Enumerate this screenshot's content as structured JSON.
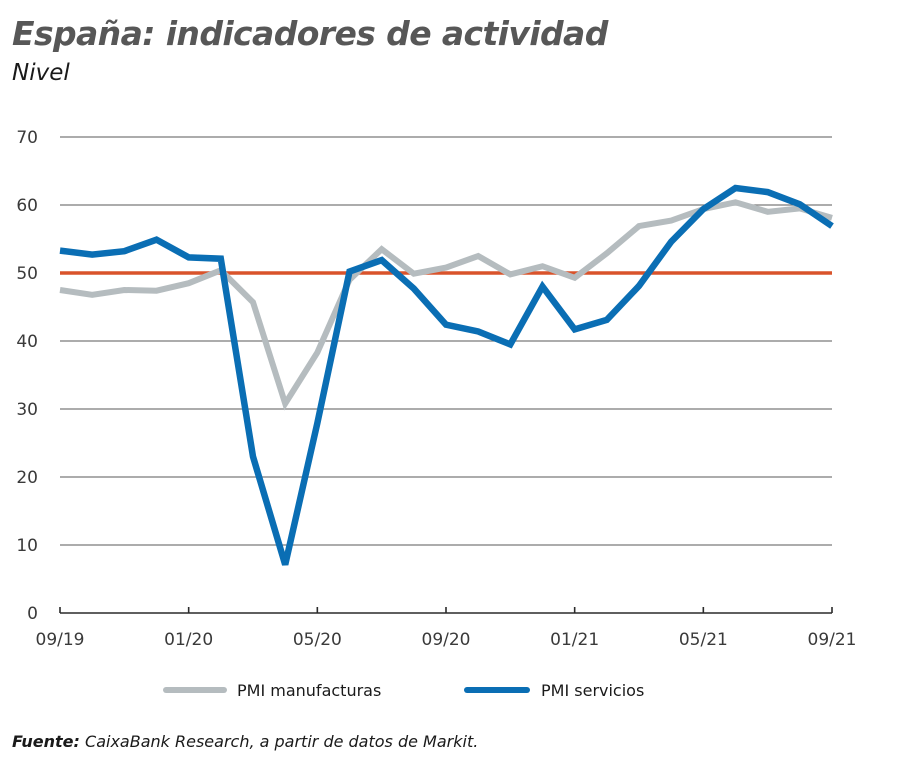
{
  "header": {
    "title": "España: indicadores de actividad",
    "subtitle": "Nivel"
  },
  "source": {
    "label": "Fuente:",
    "text": " CaixaBank Research, a partir de datos de Markit."
  },
  "colors": {
    "manufacturing": "#b5bcbf",
    "services": "#0a6eb4",
    "threshold": "#d9532b",
    "grid": "#7a7a7a",
    "axis": "#2a2a2a"
  },
  "chart_data": {
    "type": "line",
    "title": "España: indicadores de actividad",
    "subtitle": "Nivel",
    "xlabel": "",
    "ylabel": "",
    "ylim": [
      0,
      70
    ],
    "yticks": [
      0,
      10,
      20,
      30,
      40,
      50,
      60,
      70
    ],
    "grid": true,
    "legend_position": "bottom",
    "x": [
      "09/19",
      "10/19",
      "11/19",
      "12/19",
      "01/20",
      "02/20",
      "03/20",
      "04/20",
      "05/20",
      "06/20",
      "07/20",
      "08/20",
      "09/20",
      "10/20",
      "11/20",
      "12/20",
      "01/21",
      "02/21",
      "03/21",
      "04/21",
      "05/21",
      "06/21",
      "07/21",
      "08/21",
      "09/21"
    ],
    "xtick_labels": [
      "09/19",
      "01/20",
      "05/20",
      "09/20",
      "01/21",
      "05/21",
      "09/21"
    ],
    "series": [
      {
        "name": "PMI manufacturas",
        "values": [
          47.5,
          46.8,
          47.5,
          47.4,
          48.5,
          50.4,
          45.7,
          30.8,
          38.3,
          49.0,
          53.5,
          49.9,
          50.8,
          52.5,
          49.8,
          51.0,
          49.3,
          52.9,
          56.9,
          57.7,
          59.4,
          60.4,
          59.0,
          59.5,
          58.1
        ]
      },
      {
        "name": "PMI servicios",
        "values": [
          53.3,
          52.7,
          53.2,
          54.9,
          52.3,
          52.1,
          23.0,
          7.1,
          27.9,
          50.2,
          51.9,
          47.7,
          42.4,
          41.4,
          39.5,
          48.0,
          41.7,
          43.1,
          48.1,
          54.6,
          59.4,
          62.5,
          61.9,
          60.1,
          56.9
        ]
      }
    ],
    "reference_lines": [
      {
        "value": 50,
        "label": "threshold"
      }
    ]
  }
}
